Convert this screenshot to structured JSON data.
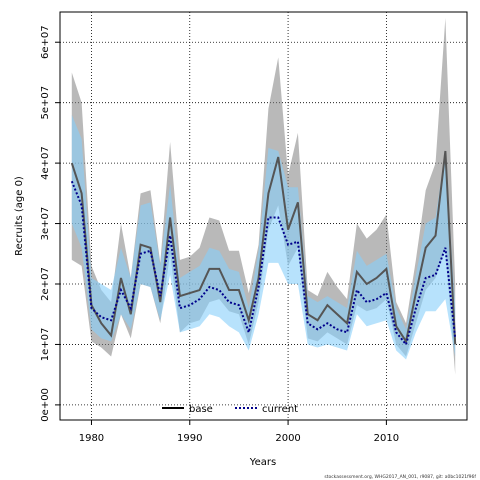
{
  "chart_data": {
    "type": "line",
    "xlabel": "Years",
    "ylabel": "Recruits (age 0)",
    "xlim": [
      1976.8,
      2018.2
    ],
    "ylim": [
      -2500000,
      65000000
    ],
    "xticks": [
      1980,
      1990,
      2000,
      2010
    ],
    "xtick_labels": [
      "1980",
      "1990",
      "2000",
      "2010"
    ],
    "yticks": [
      0,
      10000000,
      20000000,
      30000000,
      40000000,
      50000000,
      60000000
    ],
    "ytick_labels": [
      "0e+00",
      "1e+07",
      "2e+07",
      "3e+07",
      "4e+07",
      "5e+07",
      "6e+07"
    ],
    "grid": true,
    "legend": {
      "position": "bottom-center",
      "entries": [
        "base",
        "current"
      ]
    },
    "footnote": "stockassessment.org, WHG2017_AN_001, r9087, git: a0bc1021f96f",
    "x": [
      1978,
      1979,
      1980,
      1981,
      1982,
      1983,
      1984,
      1985,
      1986,
      1987,
      1988,
      1989,
      1990,
      1991,
      1992,
      1993,
      1994,
      1995,
      1996,
      1997,
      1998,
      1999,
      2000,
      2001,
      2002,
      2003,
      2004,
      2005,
      2006,
      2007,
      2008,
      2009,
      2010,
      2011,
      2012,
      2013,
      2014,
      2015,
      2016,
      2017
    ],
    "series": [
      {
        "name": "base",
        "color": "#555555",
        "band_color": "#7f7f7f",
        "values": [
          40000000,
          35000000,
          16500000,
          13500000,
          11500000,
          21000000,
          15000000,
          26500000,
          26000000,
          17000000,
          31000000,
          18000000,
          18500000,
          19000000,
          22500000,
          22500000,
          19000000,
          19000000,
          14000000,
          21000000,
          35000000,
          41000000,
          29000000,
          33500000,
          15000000,
          14000000,
          16500000,
          15000000,
          13500000,
          22000000,
          20000000,
          21000000,
          22500000,
          13000000,
          10500000,
          18500000,
          26000000,
          28000000,
          42000000,
          10000000
        ],
        "lower": [
          24000000,
          23000000,
          10500000,
          9500000,
          8000000,
          15000000,
          11000000,
          20000000,
          19500000,
          13500000,
          25000000,
          12000000,
          13500000,
          14000000,
          17000000,
          17500000,
          15500000,
          15000000,
          10000000,
          17000000,
          29000000,
          33000000,
          23000000,
          26000000,
          11000000,
          10500000,
          12000000,
          11000000,
          10000000,
          16500000,
          15500000,
          16000000,
          17500000,
          10000000,
          8000000,
          13500000,
          19000000,
          21000000,
          26000000,
          5000000
        ],
        "upper": [
          55000000,
          50000000,
          23000000,
          19000000,
          17000000,
          30000000,
          21000000,
          35000000,
          35500000,
          23500000,
          43500000,
          24000000,
          24500000,
          26000000,
          31000000,
          30500000,
          25500000,
          25500000,
          18500000,
          26500000,
          49000000,
          57500000,
          38000000,
          45000000,
          19000000,
          18000000,
          22000000,
          19500000,
          17500000,
          30000000,
          27500000,
          29000000,
          31500000,
          17000000,
          13500000,
          24000000,
          35500000,
          40000000,
          64000000,
          20000000
        ]
      },
      {
        "name": "current",
        "color": "#00008b",
        "band_color": "#87cefa",
        "values": [
          37000000,
          33000000,
          16000000,
          14500000,
          14000000,
          19000000,
          16000000,
          25000000,
          25500000,
          18000000,
          28000000,
          16000000,
          16500000,
          17500000,
          19500000,
          19000000,
          17000000,
          16500000,
          12000000,
          19500000,
          31000000,
          31000000,
          26500000,
          27000000,
          13500000,
          12500000,
          13500000,
          12500000,
          12000000,
          19000000,
          17000000,
          17500000,
          18500000,
          12000000,
          10000000,
          16000000,
          21000000,
          21500000,
          26000000,
          11000000
        ],
        "lower": [
          30000000,
          26000000,
          12500000,
          11000000,
          10500000,
          15000000,
          12500000,
          20000000,
          19500000,
          14000000,
          21500000,
          12000000,
          12500000,
          13000000,
          15000000,
          14500000,
          13000000,
          12000000,
          9000000,
          15000000,
          23500000,
          23500000,
          20000000,
          20000000,
          10000000,
          9500000,
          10000000,
          9500000,
          9000000,
          15000000,
          13000000,
          13500000,
          14000000,
          9000000,
          7500000,
          12000000,
          15500000,
          15500000,
          17500000,
          8000000
        ],
        "upper": [
          48000000,
          44000000,
          21000000,
          20000000,
          19000000,
          26000000,
          21000000,
          33000000,
          33500000,
          23000000,
          36500000,
          21000000,
          22000000,
          23000000,
          26000000,
          25500000,
          22500000,
          22000000,
          16000000,
          25500000,
          42500000,
          42000000,
          36000000,
          36000000,
          18000000,
          17000000,
          18000000,
          17000000,
          16000000,
          25500000,
          23000000,
          24000000,
          25000000,
          16000000,
          12500000,
          21500000,
          30000000,
          31000000,
          42000000,
          16000000
        ]
      }
    ]
  }
}
